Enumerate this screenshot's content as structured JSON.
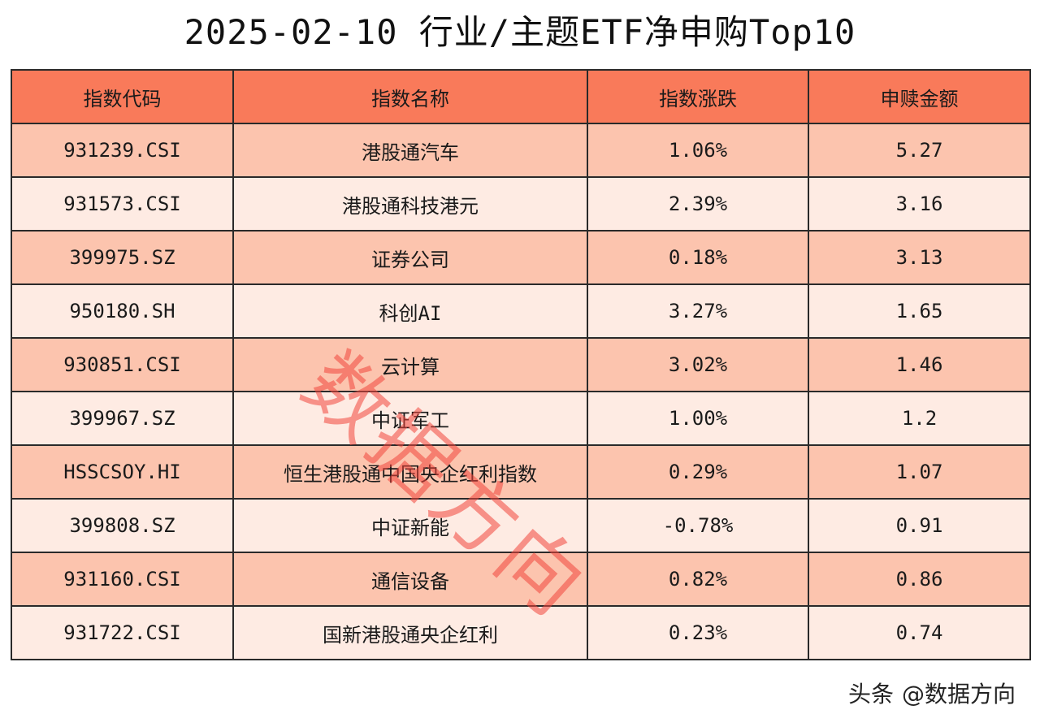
{
  "title": "2025-02-10 行业/主题ETF净申购Top10",
  "table": {
    "headers": [
      "指数代码",
      "指数名称",
      "指数涨跌",
      "申赎金额"
    ],
    "rows": [
      [
        "931239.CSI",
        "港股通汽车",
        "1.06%",
        "5.27"
      ],
      [
        "931573.CSI",
        "港股通科技港元",
        "2.39%",
        "3.16"
      ],
      [
        "399975.SZ",
        "证券公司",
        "0.18%",
        "3.13"
      ],
      [
        "950180.SH",
        "科创AI",
        "3.27%",
        "1.65"
      ],
      [
        "930851.CSI",
        "云计算",
        "3.02%",
        "1.46"
      ],
      [
        "399967.SZ",
        "中证军工",
        "1.00%",
        "1.2"
      ],
      [
        "HSSCSOY.HI",
        "恒生港股通中国央企红利指数",
        "0.29%",
        "1.07"
      ],
      [
        "399808.SZ",
        "中证新能",
        "-0.78%",
        "0.91"
      ],
      [
        "931160.CSI",
        "通信设备",
        "0.82%",
        "0.86"
      ],
      [
        "931722.CSI",
        "国新港股通央企红利",
        "0.23%",
        "0.74"
      ]
    ]
  },
  "watermark": "数据方向",
  "footer": {
    "platform": "头条",
    "account": "@数据方向"
  },
  "colors": {
    "header_bg": "#f97a5a",
    "row_odd_bg": "#fcc4ae",
    "row_even_bg": "#feebe3",
    "watermark": "#f0463c"
  }
}
